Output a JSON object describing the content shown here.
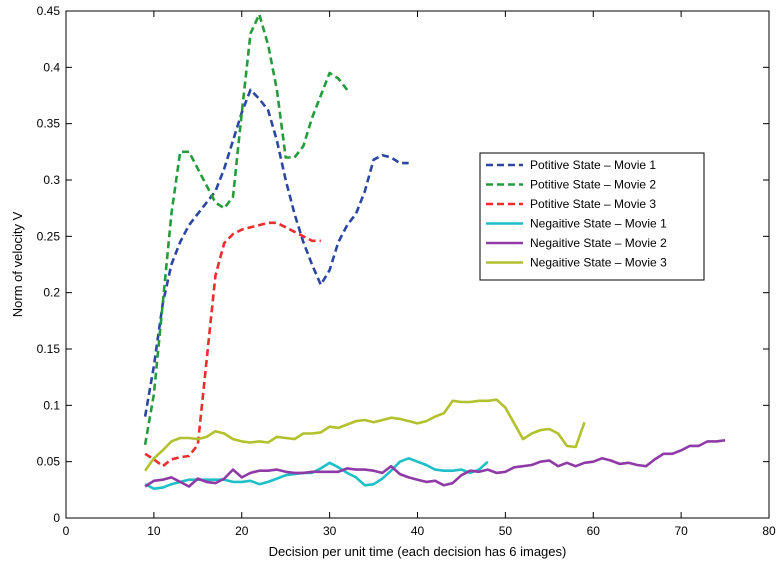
{
  "chart_data": {
    "type": "line",
    "title": "",
    "xlabel": "Decision per unit time (each decision has 6 images)",
    "ylabel": "Norm of velocity V",
    "xlim": [
      0,
      80
    ],
    "ylim": [
      0,
      0.45
    ],
    "xticks": [
      0,
      10,
      20,
      30,
      40,
      50,
      60,
      70,
      80
    ],
    "yticks": [
      0,
      0.05,
      0.1,
      0.15,
      0.2,
      0.25,
      0.3,
      0.35,
      0.4,
      0.45
    ],
    "xtick_labels": [
      "0",
      "10",
      "20",
      "30",
      "40",
      "50",
      "60",
      "70",
      "80"
    ],
    "ytick_labels": [
      "0",
      "0.05",
      "0.1",
      "0.15",
      "0.2",
      "0.25",
      "0.3",
      "0.35",
      "0.4",
      "0.45"
    ],
    "grid": false,
    "legend_position": "top-right",
    "series": [
      {
        "name": "Potitive State – Movie 1",
        "color": "#2b46a3",
        "style": "dashed",
        "x": [
          9,
          10,
          11,
          12,
          13,
          14,
          15,
          16,
          17,
          18,
          19,
          20,
          21,
          22,
          23,
          24,
          25,
          26,
          27,
          28,
          29,
          30,
          31,
          32,
          33,
          34,
          35,
          36,
          37,
          38,
          39
        ],
        "y": [
          0.09,
          0.135,
          0.19,
          0.225,
          0.245,
          0.26,
          0.27,
          0.28,
          0.29,
          0.31,
          0.335,
          0.36,
          0.38,
          0.372,
          0.362,
          0.335,
          0.3,
          0.27,
          0.245,
          0.225,
          0.207,
          0.22,
          0.245,
          0.26,
          0.27,
          0.29,
          0.318,
          0.322,
          0.32,
          0.315,
          0.315
        ]
      },
      {
        "name": "Potitive State – Movie 2",
        "color": "#249c3c",
        "style": "dashed",
        "x": [
          9,
          10,
          11,
          12,
          13,
          14,
          15,
          16,
          17,
          18,
          19,
          20,
          21,
          22,
          23,
          24,
          25,
          26,
          27,
          28,
          29,
          30,
          31,
          32
        ],
        "y": [
          0.065,
          0.11,
          0.19,
          0.27,
          0.325,
          0.325,
          0.31,
          0.295,
          0.28,
          0.275,
          0.285,
          0.36,
          0.43,
          0.447,
          0.42,
          0.38,
          0.32,
          0.32,
          0.33,
          0.355,
          0.375,
          0.395,
          0.39,
          0.38
        ]
      },
      {
        "name": "Potitive State – Movie 3",
        "color": "#ea2d2d",
        "style": "dashed",
        "x": [
          9,
          10,
          11,
          12,
          13,
          14,
          15,
          16,
          17,
          18,
          19,
          20,
          21,
          22,
          23,
          24,
          25,
          26,
          27,
          28,
          29
        ],
        "y": [
          0.057,
          0.052,
          0.046,
          0.052,
          0.054,
          0.055,
          0.065,
          0.14,
          0.215,
          0.244,
          0.252,
          0.256,
          0.258,
          0.26,
          0.262,
          0.262,
          0.258,
          0.254,
          0.25,
          0.246,
          0.246
        ]
      },
      {
        "name": "Negaitive State – Movie 1",
        "color": "#1ebfc7",
        "style": "solid",
        "x": [
          9,
          10,
          11,
          12,
          13,
          14,
          15,
          16,
          17,
          18,
          19,
          20,
          21,
          22,
          23,
          24,
          25,
          26,
          27,
          28,
          29,
          30,
          31,
          32,
          33,
          34,
          35,
          36,
          37,
          38,
          39,
          40,
          41,
          42,
          43,
          44,
          45,
          46,
          47,
          48
        ],
        "y": [
          0.03,
          0.026,
          0.027,
          0.03,
          0.032,
          0.034,
          0.034,
          0.034,
          0.034,
          0.034,
          0.032,
          0.032,
          0.033,
          0.03,
          0.032,
          0.035,
          0.038,
          0.039,
          0.04,
          0.04,
          0.044,
          0.049,
          0.045,
          0.04,
          0.036,
          0.029,
          0.03,
          0.035,
          0.042,
          0.05,
          0.053,
          0.05,
          0.047,
          0.043,
          0.042,
          0.042,
          0.043,
          0.04,
          0.043,
          0.05
        ]
      },
      {
        "name": "Negaitive State – Movie 2",
        "color": "#8f3aa6",
        "style": "solid",
        "x": [
          9,
          10,
          11,
          12,
          13,
          14,
          15,
          16,
          17,
          18,
          19,
          20,
          21,
          22,
          23,
          24,
          25,
          26,
          27,
          28,
          29,
          30,
          31,
          32,
          33,
          34,
          35,
          36,
          37,
          38,
          39,
          40,
          41,
          42,
          43,
          44,
          45,
          46,
          47,
          48,
          49,
          50,
          51,
          52,
          53,
          54,
          55,
          56,
          57,
          58,
          59,
          60,
          61,
          62,
          63,
          64,
          65,
          66,
          67,
          68,
          69,
          70,
          71,
          72,
          73,
          74,
          75
        ],
        "y": [
          0.028,
          0.033,
          0.034,
          0.036,
          0.032,
          0.028,
          0.035,
          0.032,
          0.031,
          0.035,
          0.043,
          0.036,
          0.04,
          0.042,
          0.042,
          0.043,
          0.041,
          0.04,
          0.04,
          0.041,
          0.041,
          0.041,
          0.041,
          0.044,
          0.043,
          0.043,
          0.042,
          0.04,
          0.046,
          0.039,
          0.036,
          0.034,
          0.032,
          0.033,
          0.029,
          0.031,
          0.038,
          0.042,
          0.041,
          0.043,
          0.04,
          0.041,
          0.045,
          0.046,
          0.047,
          0.05,
          0.051,
          0.046,
          0.049,
          0.046,
          0.049,
          0.05,
          0.053,
          0.051,
          0.048,
          0.049,
          0.047,
          0.046,
          0.052,
          0.057,
          0.057,
          0.06,
          0.064,
          0.064,
          0.068,
          0.068,
          0.069
        ]
      },
      {
        "name": "Negaitive State – Movie 3",
        "color": "#b3c12e",
        "style": "solid",
        "x": [
          9,
          10,
          11,
          12,
          13,
          14,
          15,
          16,
          17,
          18,
          19,
          20,
          21,
          22,
          23,
          24,
          25,
          26,
          27,
          28,
          29,
          30,
          31,
          32,
          33,
          34,
          35,
          36,
          37,
          38,
          39,
          40,
          41,
          42,
          43,
          44,
          45,
          46,
          47,
          48,
          49,
          50,
          51,
          52,
          53,
          54,
          55,
          56,
          57,
          58,
          59
        ],
        "y": [
          0.042,
          0.053,
          0.06,
          0.068,
          0.071,
          0.071,
          0.07,
          0.072,
          0.077,
          0.075,
          0.07,
          0.068,
          0.067,
          0.068,
          0.067,
          0.072,
          0.071,
          0.07,
          0.075,
          0.075,
          0.076,
          0.081,
          0.08,
          0.083,
          0.086,
          0.087,
          0.085,
          0.087,
          0.089,
          0.088,
          0.086,
          0.084,
          0.086,
          0.09,
          0.093,
          0.104,
          0.103,
          0.103,
          0.104,
          0.104,
          0.105,
          0.098,
          0.084,
          0.07,
          0.075,
          0.078,
          0.079,
          0.075,
          0.064,
          0.063,
          0.085
        ]
      }
    ]
  }
}
